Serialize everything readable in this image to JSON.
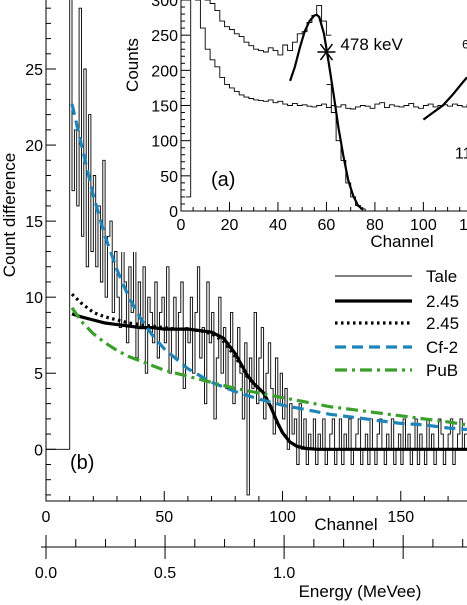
{
  "chart_data": [
    {
      "panel": "b",
      "type": "line",
      "panel_label": "(b)",
      "xlabel": "Channel",
      "ylabel": "Count difference",
      "xlim": [
        0,
        178
      ],
      "ylim": [
        -3.4,
        29.8
      ],
      "x_ticks": [
        0,
        50,
        100,
        150
      ],
      "y_ticks": [
        0,
        5,
        10,
        15,
        20,
        25
      ],
      "secondary_axis": {
        "label": "Energy (MeVee)",
        "unit": "MeVee",
        "ticks": [
          "0.0",
          "0.5",
          "1.0"
        ],
        "tick_values": [
          0.0,
          0.5,
          1.0
        ],
        "minor_step": 0.125,
        "channel_per_MeVee": 100.67
      },
      "legend_position": "right",
      "series": [
        {
          "name": "Tale",
          "style": "histogram-thin",
          "color": "#000000",
          "x": [
            0,
            10,
            11,
            12,
            13,
            14,
            15,
            16,
            17,
            18,
            19,
            20,
            21,
            22,
            23,
            24,
            25,
            26,
            27,
            28,
            29,
            30,
            31,
            32,
            33,
            34,
            35,
            36,
            37,
            38,
            39,
            40,
            41,
            42,
            43,
            44,
            45,
            46,
            47,
            48,
            49,
            50,
            51,
            52,
            53,
            54,
            55,
            56,
            57,
            58,
            59,
            60,
            61,
            62,
            63,
            64,
            65,
            66,
            67,
            68,
            69,
            70,
            71,
            72,
            73,
            74,
            75,
            76,
            77,
            78,
            79,
            80,
            81,
            82,
            83,
            84,
            85,
            86,
            87,
            88,
            89,
            90,
            91,
            92,
            93,
            94,
            95,
            96,
            97,
            98,
            99,
            100,
            101,
            102,
            103,
            104,
            105,
            106,
            107,
            108,
            109,
            110,
            111,
            112,
            113,
            114,
            115,
            116,
            117,
            118,
            119,
            120,
            121,
            122,
            123,
            124,
            125,
            126,
            127,
            128,
            129,
            130,
            131,
            132,
            133,
            134,
            135,
            136,
            137,
            138,
            139,
            140,
            141,
            142,
            143,
            144,
            145,
            146,
            147,
            148,
            149,
            150,
            151,
            152,
            153,
            154,
            155,
            156,
            157,
            158,
            159,
            160,
            161,
            162,
            163,
            164,
            165,
            166,
            167,
            168,
            169,
            170,
            171,
            172,
            173,
            174,
            175,
            176,
            177
          ],
          "values": [
            0,
            31,
            17,
            21,
            16,
            29,
            14,
            25,
            12,
            22,
            13,
            18,
            12,
            16,
            11,
            19,
            10,
            14,
            15,
            9,
            13,
            10,
            8,
            15,
            11,
            7,
            12,
            9,
            13,
            6,
            11,
            8,
            12,
            5,
            10,
            9,
            7,
            11,
            6,
            9,
            10,
            7,
            12,
            5,
            8,
            10,
            6,
            9,
            11,
            4,
            8,
            7,
            10,
            5,
            9,
            12,
            6,
            8,
            3,
            11,
            7,
            9,
            2,
            6,
            10,
            5,
            8,
            4,
            7,
            9,
            3,
            6,
            8,
            5,
            2,
            7,
            -3,
            6,
            4,
            9,
            3,
            6,
            8,
            2,
            5,
            7,
            4,
            1,
            6,
            3,
            5,
            2,
            4,
            0,
            3,
            1,
            2,
            -1,
            3,
            0,
            2,
            -1,
            1,
            0,
            2,
            -1,
            1,
            0,
            2,
            -1,
            0,
            1,
            2,
            -1,
            0,
            2,
            -1,
            1,
            0,
            2,
            -1,
            0,
            1,
            2,
            -1,
            0,
            1,
            -1,
            2,
            0,
            -1,
            1,
            2,
            0,
            -1,
            1,
            0,
            2,
            -1,
            0,
            1,
            -1,
            2,
            0,
            1,
            -1,
            0,
            2,
            -1,
            1,
            0,
            -1,
            2,
            0,
            1,
            -1,
            0,
            2,
            1,
            -1,
            0,
            1,
            2,
            -1,
            0,
            1,
            2,
            0,
            1
          ]
        },
        {
          "name": "2.45",
          "style": "solid-thick",
          "color": "#000000",
          "x": [
            11,
            15,
            20,
            25,
            30,
            35,
            40,
            45,
            50,
            55,
            60,
            65,
            70,
            75,
            80,
            85,
            88,
            90,
            92,
            95,
            98,
            100,
            103,
            106,
            110,
            115,
            120,
            130,
            140,
            150,
            160,
            170,
            178
          ],
          "values": [
            8.9,
            8.7,
            8.5,
            8.3,
            8.2,
            8.1,
            8.0,
            8.0,
            7.9,
            7.9,
            7.9,
            7.8,
            7.7,
            7.3,
            6.3,
            4.9,
            4.3,
            4.0,
            3.7,
            2.8,
            1.7,
            1.1,
            0.5,
            0.2,
            0.05,
            0,
            0,
            0,
            0,
            0,
            0,
            0,
            0
          ]
        },
        {
          "name": "2.45",
          "style": "dotted-thick",
          "color": "#000000",
          "x": [
            11,
            15,
            20,
            25,
            30,
            35,
            40,
            45,
            50,
            55,
            60,
            65,
            70,
            75,
            80,
            85,
            88,
            90,
            92,
            95,
            98,
            100,
            103,
            106,
            110
          ],
          "values": [
            10.2,
            9.6,
            9.0,
            8.7,
            8.5,
            8.3,
            8.2,
            8.1,
            8.0,
            7.9,
            7.9,
            7.8,
            7.6,
            7.1,
            6.1,
            4.8,
            4.3,
            4.0,
            3.7,
            2.8,
            1.7,
            1.1,
            0.5,
            0.2,
            0.05
          ]
        },
        {
          "name": "Cf-2",
          "style": "dashed",
          "color": "#1f84b8",
          "x": [
            11,
            15,
            20,
            25,
            30,
            35,
            40,
            45,
            50,
            60,
            70,
            80,
            90,
            100,
            110,
            120,
            130,
            140,
            150,
            160,
            170,
            178
          ],
          "values": [
            22.7,
            20.0,
            16.7,
            14.0,
            11.8,
            10.0,
            8.6,
            7.5,
            6.6,
            5.3,
            4.4,
            3.8,
            3.3,
            2.9,
            2.6,
            2.3,
            2.1,
            1.9,
            1.7,
            1.6,
            1.4,
            1.3
          ]
        },
        {
          "name": "PuB",
          "style": "dash-dot",
          "color": "#3aa02b",
          "x": [
            11,
            15,
            20,
            25,
            30,
            35,
            40,
            45,
            50,
            60,
            70,
            80,
            90,
            100,
            110,
            120,
            130,
            140,
            150,
            160,
            170,
            178
          ],
          "values": [
            9.3,
            8.4,
            7.6,
            7.0,
            6.5,
            6.1,
            5.8,
            5.5,
            5.2,
            4.8,
            4.4,
            4.0,
            3.7,
            3.4,
            3.1,
            2.8,
            2.6,
            2.4,
            2.2,
            2.0,
            1.8,
            1.6
          ]
        }
      ]
    },
    {
      "panel": "a",
      "type": "line",
      "panel_label": "(a)",
      "xlabel": "Channel",
      "ylabel": "Counts",
      "xlim": [
        0,
        118
      ],
      "ylim": [
        0,
        300
      ],
      "x_ticks": [
        0,
        20,
        40,
        60,
        80,
        100
      ],
      "x_tick_labels": [
        "0",
        "20",
        "40",
        "60",
        "80",
        "100"
      ],
      "x_tick_label_cut": "1",
      "y_ticks": [
        0,
        50,
        100,
        150,
        200,
        250,
        300
      ],
      "y_tick_labels": [
        "0",
        "50",
        "100",
        "150",
        "200",
        "250",
        "300"
      ],
      "annotations": [
        {
          "text": "478 keV",
          "x": 60,
          "y": 226
        },
        {
          "text": "6",
          "x": 116,
          "y": 238
        },
        {
          "text": "11",
          "x": 113,
          "y": 83
        }
      ],
      "series": [
        {
          "name": "",
          "style": "histogram-thin",
          "color": "#000000",
          "x": [
            8,
            10,
            12,
            14,
            16,
            18,
            20,
            22,
            24,
            26,
            28,
            30,
            32,
            34,
            36,
            38,
            40,
            42,
            44,
            46,
            48,
            50,
            52,
            54,
            56,
            58,
            60
          ],
          "values": [
            320,
            300,
            295,
            285,
            270,
            262,
            258,
            252,
            248,
            240,
            235,
            230,
            228,
            226,
            232,
            228,
            222,
            236,
            228,
            240,
            252,
            255,
            268,
            278,
            292,
            270,
            250
          ]
        },
        {
          "name": "",
          "style": "histogram-thin",
          "color": "#000000",
          "x": [
            2,
            4,
            6,
            8,
            10,
            12,
            14,
            16,
            18,
            20,
            22,
            24,
            26,
            28,
            30,
            32,
            34,
            36,
            38,
            40,
            42,
            44,
            46,
            48,
            50,
            52,
            54,
            56,
            58,
            60,
            62,
            64,
            66,
            68,
            70,
            72,
            74,
            76,
            78,
            80,
            82,
            84,
            86,
            88,
            90,
            92,
            94,
            96,
            98,
            100,
            102,
            104,
            106,
            108,
            110,
            112,
            114,
            116,
            118
          ],
          "values": [
            20,
            310,
            300,
            260,
            230,
            215,
            205,
            190,
            180,
            175,
            170,
            165,
            162,
            160,
            158,
            157,
            156,
            158,
            154,
            156,
            152,
            150,
            153,
            150,
            151,
            149,
            148,
            150,
            152,
            147,
            150,
            148,
            151,
            146,
            145,
            148,
            150,
            149,
            146,
            152,
            154,
            147,
            151,
            149,
            148,
            150,
            153,
            148,
            146,
            150,
            152,
            148,
            150,
            151,
            149,
            152,
            150,
            148,
            151
          ]
        },
        {
          "name": "",
          "style": "histogram-thin",
          "color": "#000000",
          "x": [
            60,
            62,
            64,
            66,
            68,
            70,
            72,
            74,
            76
          ],
          "values": [
            180,
            140,
            100,
            72,
            40,
            20,
            8,
            3,
            0
          ]
        },
        {
          "name": "",
          "style": "fit-solid",
          "color": "#000000",
          "x": [
            45,
            47,
            49,
            51,
            53,
            55,
            56,
            57,
            59,
            61,
            63,
            65,
            67,
            69,
            71,
            73,
            75
          ],
          "values": [
            185,
            205,
            232,
            255,
            270,
            278,
            279,
            276,
            252,
            210,
            165,
            118,
            78,
            44,
            22,
            8,
            2
          ]
        },
        {
          "name": "",
          "style": "fit-solid",
          "color": "#000000",
          "x": [
            100,
            104,
            108,
            112,
            116,
            118
          ],
          "values": [
            130,
            140,
            150,
            165,
            182,
            190
          ]
        }
      ]
    }
  ]
}
